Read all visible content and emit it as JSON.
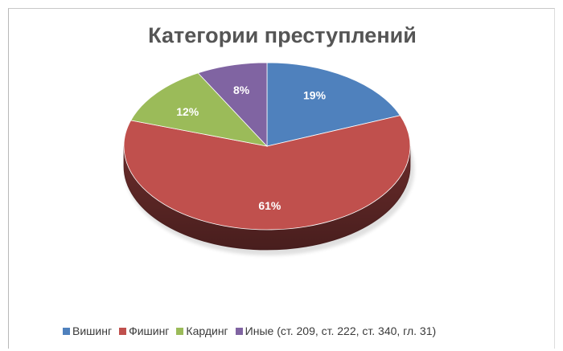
{
  "page": {
    "top_text": ""
  },
  "chart_data": {
    "type": "pie",
    "title": "Категории преступлений",
    "subtitle": "",
    "xlabel": "",
    "ylabel": "",
    "legend_position": "bottom",
    "grid": false,
    "slices": [
      {
        "label": "Вишинг",
        "value": 19,
        "data_label": "19%",
        "color": "#4F81BD"
      },
      {
        "label": "Фишинг",
        "value": 61,
        "data_label": "61%",
        "color": "#C0504D"
      },
      {
        "label": "Кардинг",
        "value": 12,
        "data_label": "12%",
        "color": "#9BBB59"
      },
      {
        "label": "Иные (ст. 209, ст. 222, ст. 340, гл. 31)",
        "value": 8,
        "data_label": "8%",
        "color": "#8064A2"
      }
    ]
  }
}
